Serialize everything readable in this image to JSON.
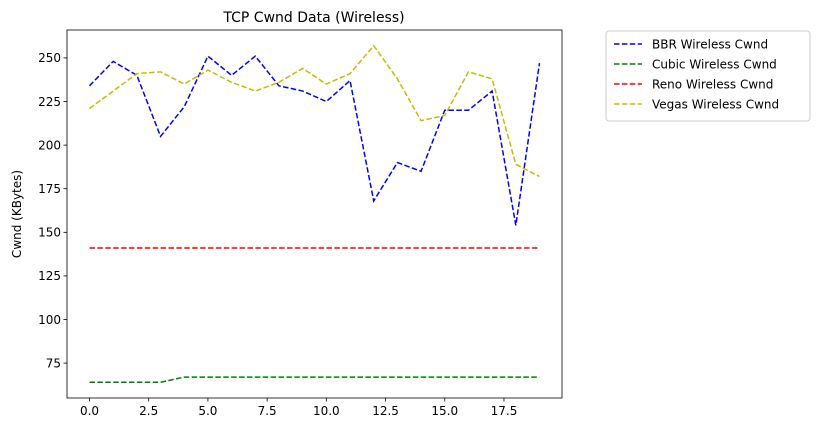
{
  "chart_data": {
    "type": "line",
    "title": "TCP Cwnd Data (Wireless)",
    "xlabel": "",
    "ylabel": "Cwnd (KBytes)",
    "xlim": [
      -0.95,
      19.95
    ],
    "ylim": [
      55,
      266
    ],
    "x_ticks": [
      0,
      2.5,
      5,
      7.5,
      10,
      12.5,
      15,
      17.5
    ],
    "x_tick_labels": [
      "0.0",
      "2.5",
      "5.0",
      "7.5",
      "10.0",
      "12.5",
      "15.0",
      "17.5"
    ],
    "y_ticks": [
      75,
      100,
      125,
      150,
      175,
      200,
      225,
      250
    ],
    "y_tick_labels": [
      "75",
      "100",
      "125",
      "150",
      "175",
      "200",
      "225",
      "250"
    ],
    "grid": false,
    "legend_position": "outside-top-right",
    "x": [
      0,
      1,
      2,
      3,
      4,
      5,
      6,
      7,
      8,
      9,
      10,
      11,
      12,
      13,
      14,
      15,
      16,
      17,
      18,
      19
    ],
    "series": [
      {
        "name": "BBR Wireless Cwnd",
        "color": "#0000ff",
        "values": [
          234,
          248,
          240,
          205,
          222,
          251,
          240,
          251,
          234,
          231,
          225,
          237,
          168,
          190,
          185,
          220,
          220,
          231,
          154,
          247
        ]
      },
      {
        "name": "Cubic Wireless Cwnd",
        "color": "#008000",
        "values": [
          64,
          64,
          64,
          64,
          67,
          67,
          67,
          67,
          67,
          67,
          67,
          67,
          67,
          67,
          67,
          67,
          67,
          67,
          67,
          67
        ]
      },
      {
        "name": "Reno Wireless Cwnd",
        "color": "#ff0000",
        "values": [
          141,
          141,
          141,
          141,
          141,
          141,
          141,
          141,
          141,
          141,
          141,
          141,
          141,
          141,
          141,
          141,
          141,
          141,
          141,
          141
        ]
      },
      {
        "name": "Vegas Wireless Cwnd",
        "color": "#bfbf00",
        "values": [
          221,
          231,
          241,
          242,
          235,
          243,
          236,
          231,
          236,
          244,
          235,
          241,
          257,
          238,
          214,
          217,
          242,
          238,
          189,
          182
        ]
      }
    ]
  }
}
